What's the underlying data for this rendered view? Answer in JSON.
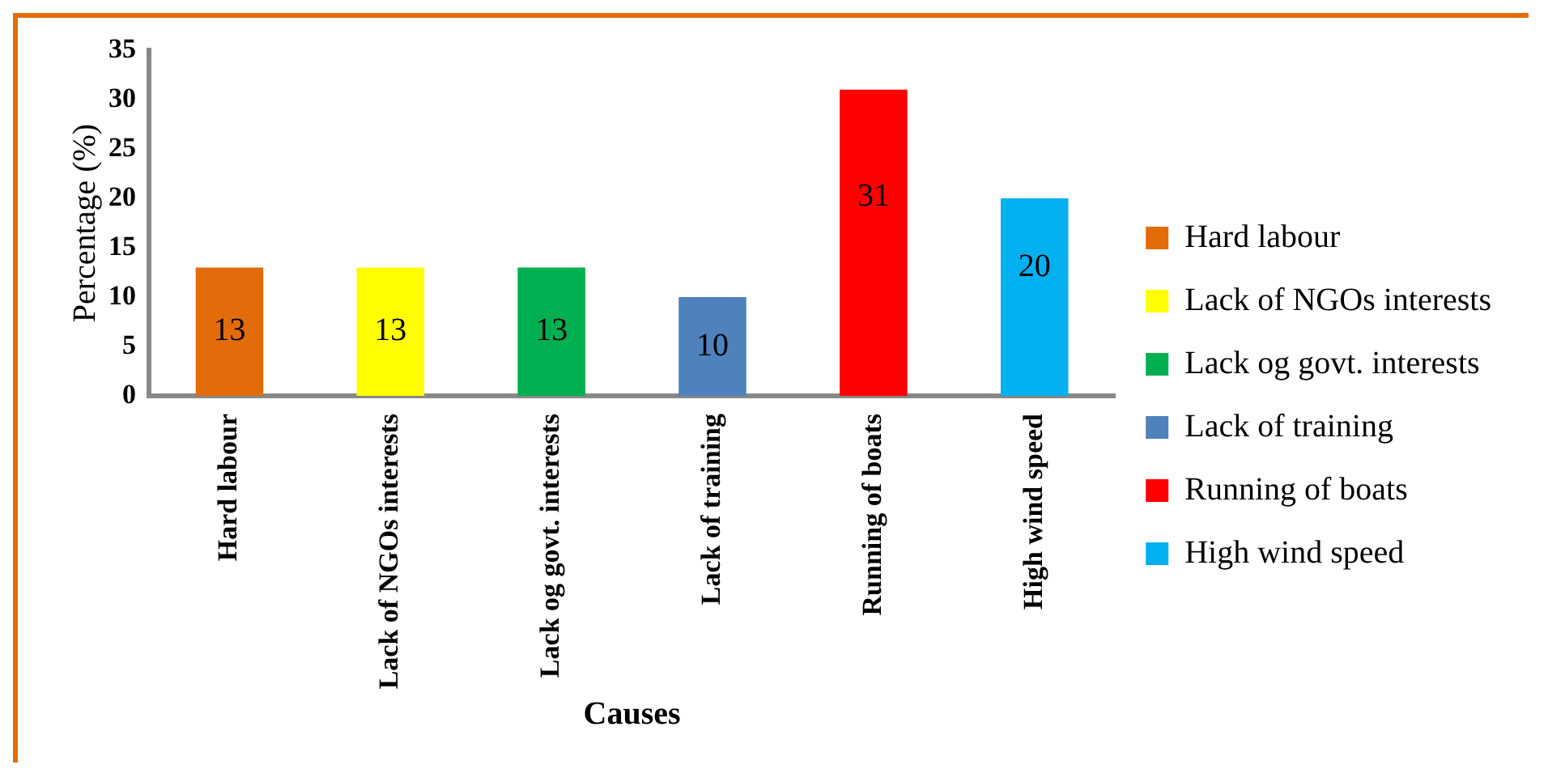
{
  "chart_data": {
    "type": "bar",
    "xlabel": "Causes",
    "ylabel": "Percentage (%)",
    "categories": [
      "Hard labour",
      "Lack of NGOs interests",
      "Lack og govt. interests",
      "Lack of training",
      "Running of boats",
      "High wind speed"
    ],
    "series": [
      {
        "name": "Hard labour",
        "color": "#e36c0a",
        "values": [
          13,
          null,
          null,
          null,
          null,
          null
        ]
      },
      {
        "name": "Lack of NGOs interests",
        "color": "#ffff00",
        "values": [
          null,
          13,
          null,
          null,
          null,
          null
        ]
      },
      {
        "name": "Lack og govt. interests",
        "color": "#00b050",
        "values": [
          null,
          null,
          13,
          null,
          null,
          null
        ]
      },
      {
        "name": "Lack of training",
        "color": "#4f81bd",
        "values": [
          null,
          null,
          null,
          10,
          null,
          null
        ]
      },
      {
        "name": "Running of boats",
        "color": "#ff0000",
        "values": [
          null,
          null,
          null,
          null,
          31,
          null
        ]
      },
      {
        "name": "High wind speed",
        "color": "#00b0f0",
        "values": [
          null,
          null,
          null,
          null,
          null,
          20
        ]
      }
    ],
    "ylim": [
      0,
      35
    ],
    "yticks": [
      0,
      5,
      10,
      15,
      20,
      25,
      30,
      35
    ],
    "grid": false,
    "legend": "right",
    "data_labels": true
  }
}
